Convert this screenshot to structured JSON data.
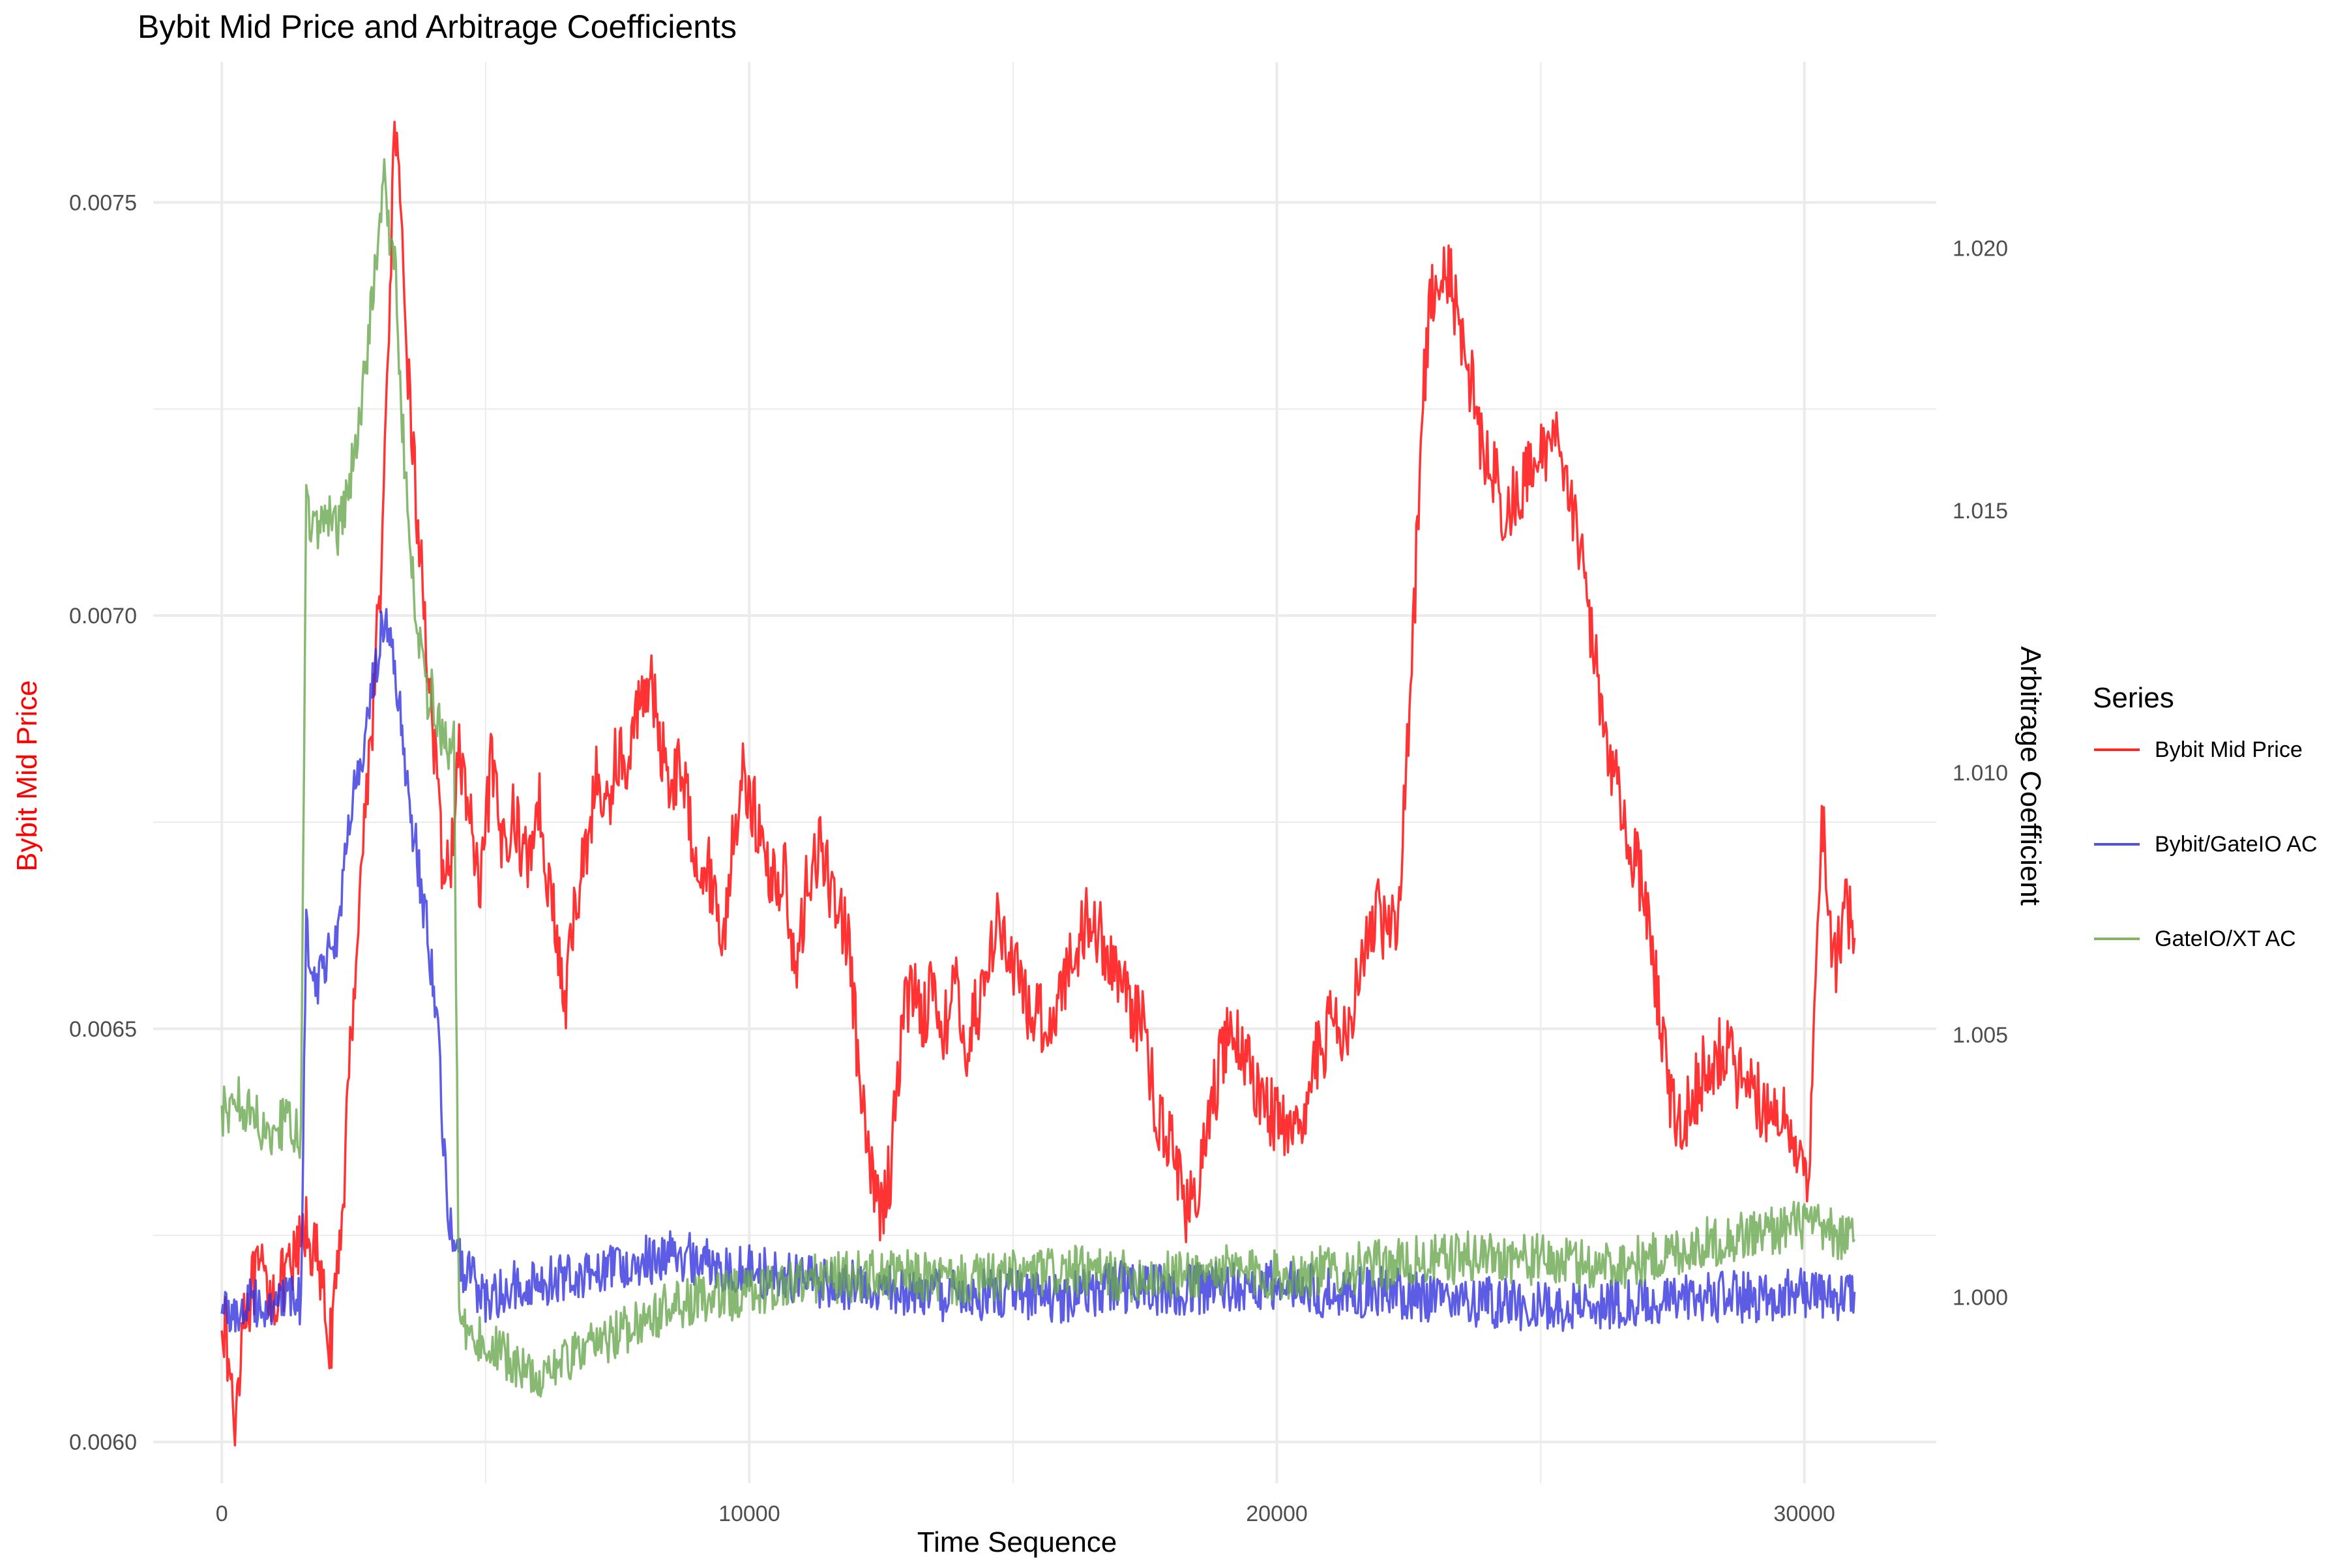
{
  "chart_data": {
    "type": "line",
    "title": "Bybit Mid Price and Arbitrage Coefficients",
    "xlabel": "Time Sequence",
    "ylabel_left": "Bybit Mid Price",
    "ylabel_right": "Arbitrage Coefficient",
    "xlim": [
      -1300,
      32500
    ],
    "ylim_left": [
      0.00595,
      0.00767
    ],
    "ylim_right": [
      0.99645,
      1.02355
    ],
    "x_ticks": [
      0,
      10000,
      20000,
      30000
    ],
    "x_tick_labels": [
      "0",
      "10000",
      "20000",
      "30000"
    ],
    "y_left_ticks": [
      0.006,
      0.0065,
      0.007,
      0.0075
    ],
    "y_left_tick_labels": [
      "0.0060",
      "0.0065",
      "0.0070",
      "0.0075"
    ],
    "y_right_ticks": [
      1.0,
      1.005,
      1.01,
      1.015,
      1.02
    ],
    "y_right_tick_labels": [
      "1.000",
      "1.005",
      "1.010",
      "1.015",
      "1.020"
    ],
    "grid": true,
    "legend": {
      "title": "Series",
      "position": "right"
    },
    "series": [
      {
        "name": "Bybit Mid Price",
        "axis": "left",
        "color": "#ff0000",
        "points": [
          [
            0,
            0.00617
          ],
          [
            150,
            0.00608
          ],
          [
            250,
            0.00602
          ],
          [
            400,
            0.00616
          ],
          [
            700,
            0.0062
          ],
          [
            1000,
            0.00618
          ],
          [
            1300,
            0.0062
          ],
          [
            1600,
            0.00626
          ],
          [
            1800,
            0.00622
          ],
          [
            2000,
            0.00614
          ],
          [
            2100,
            0.00612
          ],
          [
            2300,
            0.0063
          ],
          [
            2500,
            0.00655
          ],
          [
            2700,
            0.00675
          ],
          [
            2900,
            0.00692
          ],
          [
            3050,
            0.0071
          ],
          [
            3150,
            0.0073
          ],
          [
            3250,
            0.00755
          ],
          [
            3300,
            0.00758
          ],
          [
            3400,
            0.00745
          ],
          [
            3550,
            0.00728
          ],
          [
            3700,
            0.00712
          ],
          [
            3850,
            0.007
          ],
          [
            4000,
            0.00686
          ],
          [
            4150,
            0.00672
          ],
          [
            4300,
            0.00668
          ],
          [
            4500,
            0.00683
          ],
          [
            4700,
            0.00676
          ],
          [
            4900,
            0.00665
          ],
          [
            5100,
            0.00682
          ],
          [
            5300,
            0.00672
          ],
          [
            5500,
            0.00676
          ],
          [
            5800,
            0.0067
          ],
          [
            6000,
            0.00678
          ],
          [
            6200,
            0.00668
          ],
          [
            6400,
            0.00658
          ],
          [
            6500,
            0.00652
          ],
          [
            6700,
            0.00665
          ],
          [
            6900,
            0.00672
          ],
          [
            7100,
            0.0068
          ],
          [
            7300,
            0.00676
          ],
          [
            7500,
            0.00684
          ],
          [
            7700,
            0.0068
          ],
          [
            7900,
            0.0069
          ],
          [
            8100,
            0.00693
          ],
          [
            8300,
            0.00685
          ],
          [
            8500,
            0.0068
          ],
          [
            8700,
            0.00682
          ],
          [
            8900,
            0.00674
          ],
          [
            9100,
            0.0067
          ],
          [
            9300,
            0.00668
          ],
          [
            9500,
            0.0066
          ],
          [
            9700,
            0.00674
          ],
          [
            9900,
            0.00681
          ],
          [
            10100,
            0.00676
          ],
          [
            10300,
            0.0067
          ],
          [
            10500,
            0.00668
          ],
          [
            10700,
            0.00668
          ],
          [
            10900,
            0.00656
          ],
          [
            11100,
            0.00668
          ],
          [
            11300,
            0.00672
          ],
          [
            11500,
            0.00668
          ],
          [
            11700,
            0.00665
          ],
          [
            11900,
            0.0066
          ],
          [
            12100,
            0.00642
          ],
          [
            12300,
            0.00632
          ],
          [
            12500,
            0.00628
          ],
          [
            12700,
            0.00634
          ],
          [
            12900,
            0.00652
          ],
          [
            13100,
            0.00655
          ],
          [
            13300,
            0.00652
          ],
          [
            13500,
            0.00655
          ],
          [
            13700,
            0.0065
          ],
          [
            13900,
            0.00655
          ],
          [
            14100,
            0.00648
          ],
          [
            14300,
            0.00652
          ],
          [
            14500,
            0.00656
          ],
          [
            14700,
            0.00665
          ],
          [
            14900,
            0.00658
          ],
          [
            15100,
            0.00656
          ],
          [
            15300,
            0.00652
          ],
          [
            15500,
            0.00652
          ],
          [
            15700,
            0.0065
          ],
          [
            15900,
            0.00655
          ],
          [
            16100,
            0.00658
          ],
          [
            16300,
            0.00662
          ],
          [
            16500,
            0.00664
          ],
          [
            16700,
            0.0066
          ],
          [
            16900,
            0.00658
          ],
          [
            17100,
            0.00655
          ],
          [
            17300,
            0.00652
          ],
          [
            17500,
            0.0065
          ],
          [
            17700,
            0.0064
          ],
          [
            17900,
            0.00638
          ],
          [
            18100,
            0.00634
          ],
          [
            18300,
            0.00628
          ],
          [
            18500,
            0.0063
          ],
          [
            18700,
            0.00638
          ],
          [
            18900,
            0.00645
          ],
          [
            19100,
            0.0065
          ],
          [
            19300,
            0.00648
          ],
          [
            19500,
            0.00645
          ],
          [
            19700,
            0.00642
          ],
          [
            19900,
            0.0064
          ],
          [
            20100,
            0.00638
          ],
          [
            20300,
            0.00635
          ],
          [
            20500,
            0.0064
          ],
          [
            20700,
            0.00646
          ],
          [
            20900,
            0.00648
          ],
          [
            21100,
            0.00652
          ],
          [
            21300,
            0.0065
          ],
          [
            21500,
            0.00655
          ],
          [
            21700,
            0.0066
          ],
          [
            21900,
            0.00665
          ],
          [
            22100,
            0.0066
          ],
          [
            22300,
            0.00665
          ],
          [
            22450,
            0.0068
          ],
          [
            22600,
            0.007
          ],
          [
            22750,
            0.00725
          ],
          [
            22900,
            0.00738
          ],
          [
            23100,
            0.00742
          ],
          [
            23300,
            0.0074
          ],
          [
            23500,
            0.00733
          ],
          [
            23700,
            0.00728
          ],
          [
            23900,
            0.0072
          ],
          [
            24100,
            0.00718
          ],
          [
            24300,
            0.00712
          ],
          [
            24500,
            0.00714
          ],
          [
            24700,
            0.00716
          ],
          [
            24900,
            0.00718
          ],
          [
            25100,
            0.0072
          ],
          [
            25300,
            0.00722
          ],
          [
            25500,
            0.00718
          ],
          [
            25700,
            0.0071
          ],
          [
            25900,
            0.007
          ],
          [
            26100,
            0.00692
          ],
          [
            26300,
            0.00684
          ],
          [
            26500,
            0.00678
          ],
          [
            26700,
            0.00672
          ],
          [
            26900,
            0.00668
          ],
          [
            27100,
            0.0066
          ],
          [
            27300,
            0.0065
          ],
          [
            27500,
            0.0064
          ],
          [
            27700,
            0.00638
          ],
          [
            27900,
            0.00642
          ],
          [
            28100,
            0.00645
          ],
          [
            28300,
            0.00646
          ],
          [
            28500,
            0.00648
          ],
          [
            28700,
            0.00645
          ],
          [
            28900,
            0.00642
          ],
          [
            29100,
            0.00642
          ],
          [
            29300,
            0.0064
          ],
          [
            29500,
            0.0064
          ],
          [
            29700,
            0.00638
          ],
          [
            29900,
            0.00636
          ],
          [
            30050,
            0.00632
          ],
          [
            30150,
            0.00642
          ],
          [
            30250,
            0.00665
          ],
          [
            30350,
            0.00676
          ],
          [
            30450,
            0.00662
          ],
          [
            30600,
            0.00658
          ],
          [
            30800,
            0.00665
          ],
          [
            30950,
            0.00661
          ]
        ]
      },
      {
        "name": "Bybit/GateIO AC",
        "axis": "right",
        "color": "#3333dd",
        "points": [
          [
            0,
            0.9998
          ],
          [
            300,
            0.9997
          ],
          [
            600,
            0.9999
          ],
          [
            900,
            0.99985
          ],
          [
            1200,
            0.9999
          ],
          [
            1500,
            0.99995
          ],
          [
            1600,
            1.007
          ],
          [
            1800,
            1.006
          ],
          [
            2000,
            1.0065
          ],
          [
            2200,
            1.007
          ],
          [
            2400,
            1.009
          ],
          [
            2600,
            1.01
          ],
          [
            2800,
            1.011
          ],
          [
            2900,
            1.012
          ],
          [
            3000,
            1.0125
          ],
          [
            3100,
            1.013
          ],
          [
            3200,
            1.0125
          ],
          [
            3300,
            1.0115
          ],
          [
            3400,
            1.011
          ],
          [
            3500,
            1.01
          ],
          [
            3600,
            1.009
          ],
          [
            3700,
            1.0085
          ],
          [
            3800,
            1.0075
          ],
          [
            3900,
            1.007
          ],
          [
            4000,
            1.006
          ],
          [
            4100,
            1.005
          ],
          [
            4200,
            1.003
          ],
          [
            4300,
            1.0015
          ],
          [
            4400,
            1.0008
          ],
          [
            4600,
            1.0005
          ],
          [
            5000,
            1.0
          ],
          [
            5500,
            1.0002
          ],
          [
            6000,
            1.0003
          ],
          [
            6500,
            1.0004
          ],
          [
            7000,
            1.0005
          ],
          [
            7500,
            1.0006
          ],
          [
            8000,
            1.0007
          ],
          [
            8500,
            1.0008
          ],
          [
            9000,
            1.0007
          ],
          [
            9500,
            1.0006
          ],
          [
            10000,
            1.0005
          ],
          [
            11000,
            1.0003
          ],
          [
            12000,
            1.0002
          ],
          [
            13000,
            1.0001
          ],
          [
            14000,
            1.0
          ],
          [
            15000,
            1.0001
          ],
          [
            16000,
            1.0
          ],
          [
            17000,
            1.0002
          ],
          [
            18000,
            1.0001
          ],
          [
            19000,
            1.0002
          ],
          [
            20000,
            1.0002
          ],
          [
            21000,
            1.0001
          ],
          [
            22000,
            1.0001
          ],
          [
            23000,
            1.0
          ],
          [
            24000,
            0.9999
          ],
          [
            25000,
            0.9998
          ],
          [
            26000,
            0.9999
          ],
          [
            27000,
            0.99985
          ],
          [
            28000,
            1.0
          ],
          [
            29000,
            1.0
          ],
          [
            30000,
            1.0001
          ],
          [
            30500,
            1.0
          ],
          [
            30950,
            1.0001
          ]
        ]
      },
      {
        "name": "GateIO/XT AC",
        "axis": "right",
        "color": "#6aa84f",
        "points": [
          [
            0,
            1.0035
          ],
          [
            300,
            1.0038
          ],
          [
            600,
            1.0034
          ],
          [
            900,
            1.0032
          ],
          [
            1200,
            1.0033
          ],
          [
            1500,
            1.003
          ],
          [
            1600,
            1.015
          ],
          [
            1800,
            1.0145
          ],
          [
            2000,
            1.015
          ],
          [
            2200,
            1.0145
          ],
          [
            2400,
            1.0155
          ],
          [
            2600,
            1.0165
          ],
          [
            2800,
            1.0185
          ],
          [
            2900,
            1.0195
          ],
          [
            3000,
            1.0205
          ],
          [
            3100,
            1.0215
          ],
          [
            3200,
            1.02
          ],
          [
            3300,
            1.0195
          ],
          [
            3400,
            1.017
          ],
          [
            3500,
            1.0155
          ],
          [
            3600,
            1.014
          ],
          [
            3700,
            1.013
          ],
          [
            3800,
            1.012
          ],
          [
            3900,
            1.0115
          ],
          [
            4000,
            1.0115
          ],
          [
            4100,
            1.011
          ],
          [
            4200,
            1.0105
          ],
          [
            4300,
            1.0105
          ],
          [
            4400,
            1.0105
          ],
          [
            4500,
            0.9995
          ],
          [
            4800,
            0.9992
          ],
          [
            5200,
            0.999
          ],
          [
            5600,
            0.9987
          ],
          [
            6000,
            0.9985
          ],
          [
            6500,
            0.9988
          ],
          [
            7000,
            0.999
          ],
          [
            7500,
            0.9993
          ],
          [
            8000,
            0.9996
          ],
          [
            8500,
            0.9998
          ],
          [
            9000,
            0.9999
          ],
          [
            9500,
            1.0
          ],
          [
            10000,
            1.0001
          ],
          [
            11000,
            1.0003
          ],
          [
            12000,
            1.0004
          ],
          [
            13000,
            1.0004
          ],
          [
            14000,
            1.0003
          ],
          [
            15000,
            1.0004
          ],
          [
            16000,
            1.0005
          ],
          [
            17000,
            1.0004
          ],
          [
            18000,
            1.0004
          ],
          [
            19000,
            1.0005
          ],
          [
            20000,
            1.0004
          ],
          [
            21000,
            1.0005
          ],
          [
            22000,
            1.0006
          ],
          [
            23000,
            1.0007
          ],
          [
            24000,
            1.0008
          ],
          [
            25000,
            1.0007
          ],
          [
            26000,
            1.0006
          ],
          [
            27000,
            1.0007
          ],
          [
            28000,
            1.001
          ],
          [
            29000,
            1.0012
          ],
          [
            30000,
            1.0014
          ],
          [
            30500,
            1.0012
          ],
          [
            30950,
            1.0011
          ]
        ]
      }
    ]
  }
}
